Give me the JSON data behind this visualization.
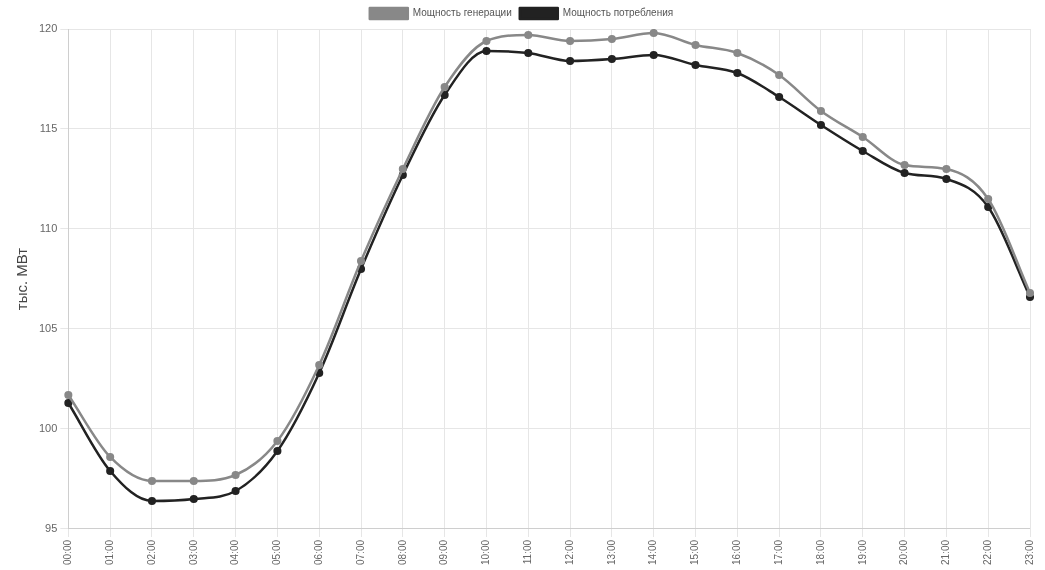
{
  "chart_data": {
    "type": "line",
    "ylabel": "тыс. МВт",
    "categories": [
      "00:00",
      "01:00",
      "02:00",
      "03:00",
      "04:00",
      "05:00",
      "06:00",
      "07:00",
      "08:00",
      "09:00",
      "10:00",
      "11:00",
      "12:00",
      "13:00",
      "14:00",
      "15:00",
      "16:00",
      "17:00",
      "18:00",
      "19:00",
      "20:00",
      "21:00",
      "22:00",
      "23:00"
    ],
    "series": [
      {
        "name": "Мощность генерации",
        "color": "#888888",
        "values": [
          101.7,
          98.6,
          97.4,
          97.4,
          97.7,
          99.4,
          103.2,
          108.4,
          113.0,
          117.1,
          119.4,
          119.7,
          119.4,
          119.5,
          119.8,
          119.2,
          118.8,
          117.7,
          115.9,
          114.6,
          113.2,
          113.0,
          111.5,
          106.8
        ]
      },
      {
        "name": "Мощность потребления",
        "color": "#222222",
        "values": [
          101.3,
          97.9,
          96.4,
          96.5,
          96.9,
          98.9,
          102.8,
          108.0,
          112.7,
          116.7,
          118.9,
          118.8,
          118.4,
          118.5,
          118.7,
          118.2,
          117.8,
          116.6,
          115.2,
          113.9,
          112.8,
          112.5,
          111.1,
          106.6
        ]
      }
    ],
    "ylim": [
      95,
      120
    ],
    "yticks": [
      95,
      100,
      105,
      110,
      115,
      120
    ],
    "grid": true,
    "legend": "top",
    "marker": "circle",
    "line_style": "solid"
  }
}
